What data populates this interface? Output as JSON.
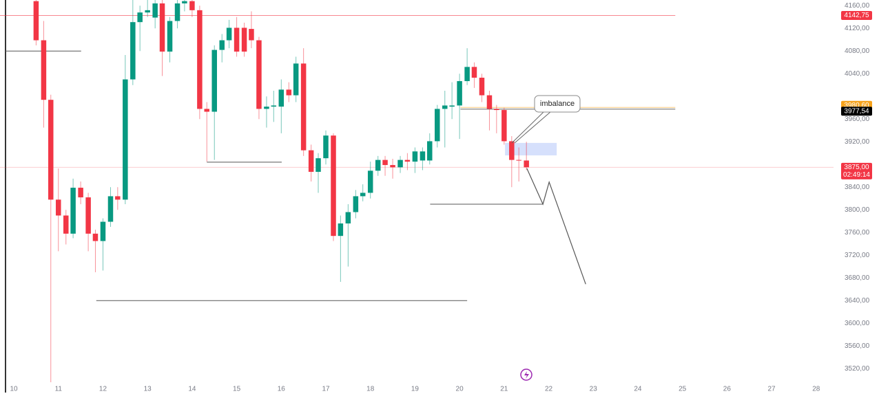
{
  "chart_data": {
    "type": "candlestick",
    "up_color": "#089981",
    "down_color": "#f23645",
    "x": [
      10.5,
      10.67,
      10.83,
      11,
      11.17,
      11.33,
      11.5,
      11.67,
      11.83,
      12,
      12.17,
      12.33,
      12.5,
      12.67,
      12.83,
      13,
      13.17,
      13.33,
      13.5,
      13.67,
      13.83,
      14,
      14.17,
      14.33,
      14.5,
      14.67,
      14.83,
      15,
      15.17,
      15.33,
      15.5,
      15.67,
      15.83,
      16,
      16.17,
      16.33,
      16.5,
      16.67,
      16.83,
      17,
      17.17,
      17.33,
      17.5,
      17.67,
      17.83,
      18,
      18.17,
      18.33,
      18.5,
      18.67,
      18.83,
      19,
      19.17,
      19.33,
      19.5,
      19.67,
      19.83,
      20,
      20.17,
      20.33,
      20.5,
      20.67,
      20.83,
      21,
      21.17,
      21.33,
      21.5
    ],
    "open": [
      4168,
      4099,
      3994,
      3818,
      3790,
      3758,
      3839,
      3822,
      3758,
      3745,
      3779,
      3824,
      3818,
      4030,
      4131,
      4148,
      4139,
      4164,
      4079,
      4133,
      4164,
      4168,
      4152,
      3978,
      3973,
      4082,
      4099,
      4121,
      4121,
      4119,
      4099,
      3978,
      3982,
      3982,
      4012,
      4002,
      4058,
      3905,
      3867,
      3891,
      3931,
      3754,
      3776,
      3796,
      3824,
      3830,
      3869,
      3888,
      3879,
      3875,
      3888,
      3885,
      3887,
      3887,
      3921,
      3978,
      3982,
      3984,
      4027,
      4052,
      4033,
      4002,
      3978,
      3976,
      3921,
      3888,
      3887
    ],
    "high": [
      4170,
      4133,
      4003,
      3873,
      3800,
      3855,
      3850,
      3830,
      3765,
      3785,
      3840,
      3840,
      4073,
      4170,
      4160,
      4170,
      4170,
      4170,
      4140,
      4170,
      4170,
      4170,
      4160,
      3990,
      4090,
      4110,
      4135,
      4140,
      4130,
      4150,
      4105,
      4000,
      4010,
      4030,
      4025,
      4070,
      4085,
      3915,
      3900,
      3940,
      3935,
      3790,
      3810,
      3835,
      3845,
      3885,
      3895,
      3895,
      3890,
      3895,
      3900,
      3910,
      3910,
      3935,
      3985,
      4010,
      4025,
      4040,
      4085,
      4060,
      4040,
      4010,
      3985,
      3980,
      3930,
      3910,
      3920
    ],
    "low": [
      4090,
      3945,
      3496,
      3727,
      3739,
      3750,
      3810,
      3727,
      3690,
      3693,
      3770,
      3800,
      3810,
      4020,
      4080,
      4140,
      4120,
      4036,
      4060,
      4120,
      4150,
      4140,
      3960,
      3885,
      3888,
      4060,
      4085,
      4070,
      4070,
      4085,
      3960,
      3945,
      3955,
      3935,
      3990,
      3990,
      3895,
      3850,
      3830,
      3880,
      3745,
      3673,
      3700,
      3785,
      3815,
      3820,
      3860,
      3860,
      3855,
      3865,
      3870,
      3865,
      3870,
      3880,
      3910,
      3910,
      3960,
      3925,
      4020,
      4015,
      3990,
      3940,
      3935,
      3915,
      3840,
      3850,
      3870
    ],
    "close": [
      4099,
      3994,
      3818,
      3790,
      3758,
      3839,
      3822,
      3758,
      3745,
      3779,
      3824,
      3818,
      4030,
      4131,
      4148,
      4152,
      4164,
      4079,
      4133,
      4164,
      4168,
      4152,
      3978,
      3973,
      4082,
      4099,
      4121,
      4079,
      4079,
      4099,
      3978,
      3982,
      3984,
      4012,
      4002,
      4058,
      3905,
      3867,
      3891,
      3931,
      3754,
      3776,
      3796,
      3824,
      3830,
      3869,
      3888,
      3879,
      3875,
      3888,
      3885,
      3903,
      3903,
      3921,
      3978,
      3984,
      3984,
      4027,
      4052,
      4033,
      4002,
      3978,
      3976,
      3921,
      3888,
      3887,
      3875
    ],
    "xlim": [
      9.69,
      28.39
    ],
    "xticks": [
      10,
      11,
      12,
      13,
      14,
      15,
      16,
      17,
      18,
      19,
      20,
      21,
      22,
      23,
      24,
      25,
      26,
      27,
      28
    ],
    "ylim": [
      3496,
      4170
    ],
    "yticks": [
      {
        "value": 4160,
        "label": "4160,00"
      },
      {
        "value": 4120,
        "label": "4120,00"
      },
      {
        "value": 4080,
        "label": "4080,00"
      },
      {
        "value": 4040,
        "label": "4040,00"
      },
      {
        "value": 3960,
        "label": "3960,00"
      },
      {
        "value": 3920,
        "label": "3920,00"
      },
      {
        "value": 3840,
        "label": "3840,00"
      },
      {
        "value": 3800,
        "label": "3800,00"
      },
      {
        "value": 3760,
        "label": "3760,00"
      },
      {
        "value": 3720,
        "label": "3720,00"
      },
      {
        "value": 3680,
        "label": "3680,00"
      },
      {
        "value": 3640,
        "label": "3640,00"
      },
      {
        "value": 3600,
        "label": "3600,00"
      },
      {
        "value": 3560,
        "label": "3560,00"
      },
      {
        "value": 3520,
        "label": "3520,00"
      }
    ],
    "levels": [
      {
        "y": 4080,
        "x": [
          9.81,
          11.51
        ]
      },
      {
        "y": 3884,
        "x": [
          14.33,
          16.01
        ]
      },
      {
        "y": 3640,
        "x": [
          11.85,
          20.17
        ]
      },
      {
        "y": 3810,
        "x": [
          19.34,
          21.87
        ]
      }
    ],
    "price_lines": [
      {
        "value": 4142.75,
        "label": "4142,75",
        "color": "#f23645",
        "x": [
          9.69,
          24.84
        ]
      },
      {
        "value": 3980.6,
        "label": "3980,60",
        "color": "#f7a21b",
        "x": [
          20.02,
          24.84
        ]
      },
      {
        "value": 3977.54,
        "label": "3977,54",
        "color": "#000000",
        "x": [
          20.02,
          24.84
        ]
      },
      {
        "value": 3875,
        "label": "3875,00",
        "color": "#f23645",
        "x": [
          9.69,
          28.39
        ],
        "countdown": "02:49:14"
      }
    ],
    "projection": {
      "x": [
        21.51,
        21.87,
        22.01,
        22.83
      ],
      "y": [
        3873,
        3810,
        3849,
        3669
      ]
    },
    "zone": {
      "label": "imbalance",
      "x": [
        21.02,
        22.18
      ],
      "y": [
        3896,
        3918
      ]
    }
  }
}
